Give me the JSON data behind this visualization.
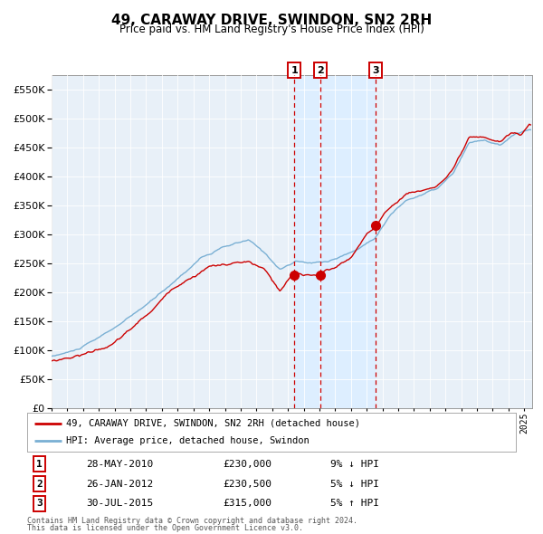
{
  "title": "49, CARAWAY DRIVE, SWINDON, SN2 2RH",
  "subtitle": "Price paid vs. HM Land Registry's House Price Index (HPI)",
  "legend_line1": "49, CARAWAY DRIVE, SWINDON, SN2 2RH (detached house)",
  "legend_line2": "HPI: Average price, detached house, Swindon",
  "footer1": "Contains HM Land Registry data © Crown copyright and database right 2024.",
  "footer2": "This data is licensed under the Open Government Licence v3.0.",
  "transactions": [
    {
      "num": 1,
      "date": "28-MAY-2010",
      "price": 230000,
      "year": 2010.41,
      "hpi_pct": "9%",
      "hpi_dir": "↓"
    },
    {
      "num": 2,
      "date": "26-JAN-2012",
      "price": 230500,
      "year": 2012.07,
      "hpi_pct": "5%",
      "hpi_dir": "↓"
    },
    {
      "num": 3,
      "date": "30-JUL-2015",
      "price": 315000,
      "year": 2015.58,
      "hpi_pct": "5%",
      "hpi_dir": "↑"
    }
  ],
  "sale1_year": 2010.41,
  "sale2_year": 2012.07,
  "sale3_year": 2015.58,
  "highlight_start": 2010.41,
  "highlight_end": 2015.58,
  "ylim": [
    0,
    575000
  ],
  "xlim_start": 1995.0,
  "xlim_end": 2025.5,
  "hpi_color": "#7ab0d4",
  "property_color": "#cc0000",
  "highlight_color": "#ddeeff",
  "dashed_line_color": "#cc0000",
  "background_color": "#ffffff",
  "chart_bg_color": "#e8f0f8",
  "grid_color": "#ffffff"
}
